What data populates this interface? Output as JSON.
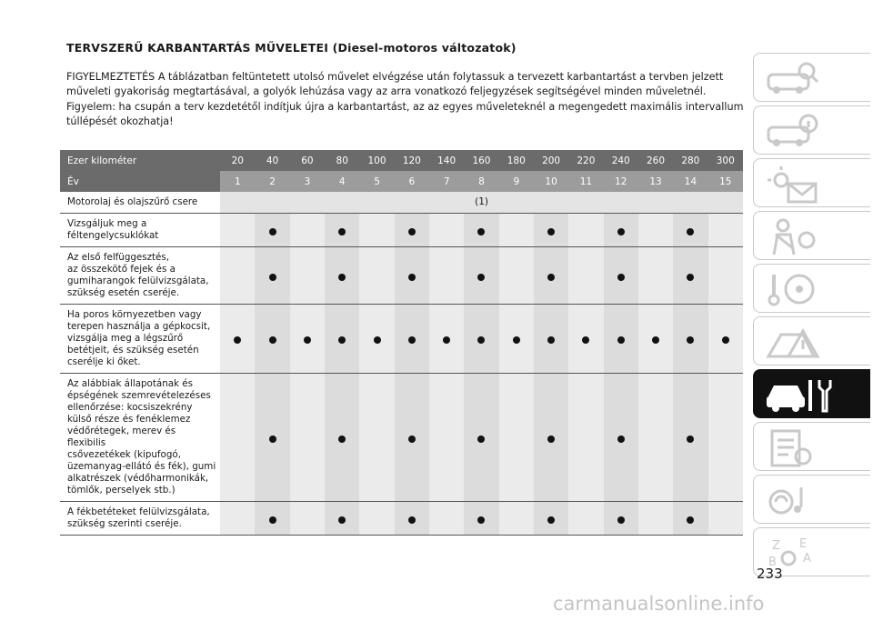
{
  "title": "TERVSZERŰ KARBANTARTÁS MŰVELETEI (Diesel-motoros változatok)",
  "intro": "FIGYELMEZTETÉS A táblázatban feltüntetett utolsó művelet elvégzése után folytassuk a tervezett karbantartást a tervben jelzett műveleti gyakoriság megtartásával, a golyók lehúzása vagy az arra vonatkozó feljegyzések segítségével minden műveletnél. Figyelem: ha csupán a terv kezdetétől indítjuk újra a karbantartást, az az egyes műveleteknél a megengedett maximális intervallum túllépését okozhatja!",
  "table": {
    "km_label": "Ezer kilométer",
    "year_label": "Év",
    "km": [
      "20",
      "40",
      "60",
      "80",
      "100",
      "120",
      "140",
      "160",
      "180",
      "200",
      "220",
      "240",
      "260",
      "280",
      "300"
    ],
    "years": [
      "1",
      "2",
      "3",
      "4",
      "5",
      "6",
      "7",
      "8",
      "9",
      "10",
      "11",
      "12",
      "13",
      "14",
      "15"
    ],
    "oil_row": {
      "label": "Motorolaj és olajszűrő csere",
      "note": "(1)"
    },
    "rows": [
      {
        "label": "Vizsgáljuk meg a\nféltengelycsuklókat",
        "marks": [
          0,
          1,
          0,
          1,
          0,
          1,
          0,
          1,
          0,
          1,
          0,
          1,
          0,
          1,
          0
        ]
      },
      {
        "label": "Az első felfüggesztés,\naz összekötő fejek és a\ngumiharangok felülvizsgálata,\nszükség esetén cseréje.",
        "marks": [
          0,
          1,
          0,
          1,
          0,
          1,
          0,
          1,
          0,
          1,
          0,
          1,
          0,
          1,
          0
        ]
      },
      {
        "label": "Ha poros környezetben vagy\nterepen használja a gépkocsit,\nvizsgálja meg a légszűrő\nbetétjeit, és szükség esetén\ncserélje ki őket.",
        "marks": [
          1,
          1,
          1,
          1,
          1,
          1,
          1,
          1,
          1,
          1,
          1,
          1,
          1,
          1,
          1
        ]
      },
      {
        "label": "Az alábbiak állapotának és\népségének szemrevételezéses\nellenőrzése: kocsiszekrény\nkülső része és fenéklemez\nvédőrétegek, merev és flexibilis\ncsővezetékek (kipufogó,\nüzemanyag-ellátó és fék), gumi\nalkatrészek (védőharmonikák,\ntömlők, perselyek stb.)",
        "marks": [
          0,
          1,
          0,
          1,
          0,
          1,
          0,
          1,
          0,
          1,
          0,
          1,
          0,
          1,
          0
        ]
      },
      {
        "label": "A fékbetéteket felülvizsgálata,\nszükség szerinti cseréje.",
        "marks": [
          0,
          1,
          0,
          1,
          0,
          1,
          0,
          1,
          0,
          1,
          0,
          1,
          0,
          1,
          0
        ]
      }
    ]
  },
  "sidebar": {
    "tabs": [
      {
        "icon": "car-search-icon"
      },
      {
        "icon": "car-info-icon"
      },
      {
        "icon": "warning-lights-icon"
      },
      {
        "icon": "seatbelt-safety-icon"
      },
      {
        "icon": "steering-start-icon"
      },
      {
        "icon": "emergency-icon"
      },
      {
        "icon": "car-maintenance-icon",
        "active": true
      },
      {
        "icon": "technical-data-icon"
      },
      {
        "icon": "multimedia-icon"
      },
      {
        "icon": "index-icon"
      }
    ]
  },
  "page_number": "233",
  "watermark": "carmanualsonline.info"
}
